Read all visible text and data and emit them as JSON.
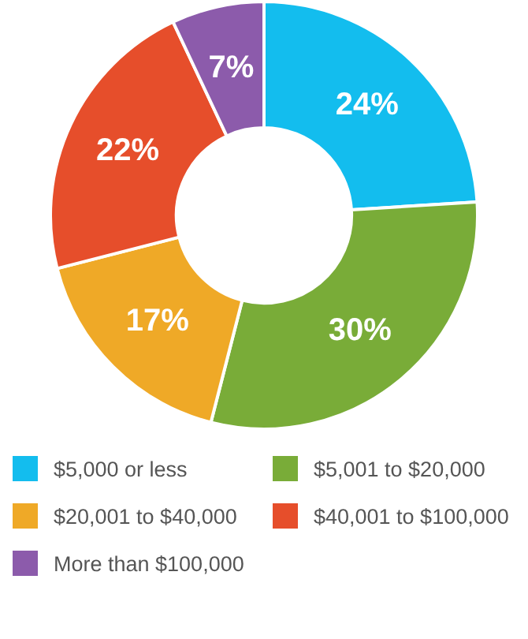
{
  "chart_data": {
    "type": "donut",
    "categories": [
      "$5,000 or less",
      "$5,001 to $20,000",
      "$20,001 to $40,000",
      "$40,001 to $100,000",
      "More than $100,000"
    ],
    "values": [
      24,
      30,
      17,
      22,
      7
    ],
    "colors": [
      "#13bdee",
      "#79ac38",
      "#efa927",
      "#e64e2b",
      "#8c5bab"
    ],
    "value_labels": [
      "24%",
      "30%",
      "17%",
      "22%",
      "7%"
    ],
    "legend": "bottom"
  }
}
